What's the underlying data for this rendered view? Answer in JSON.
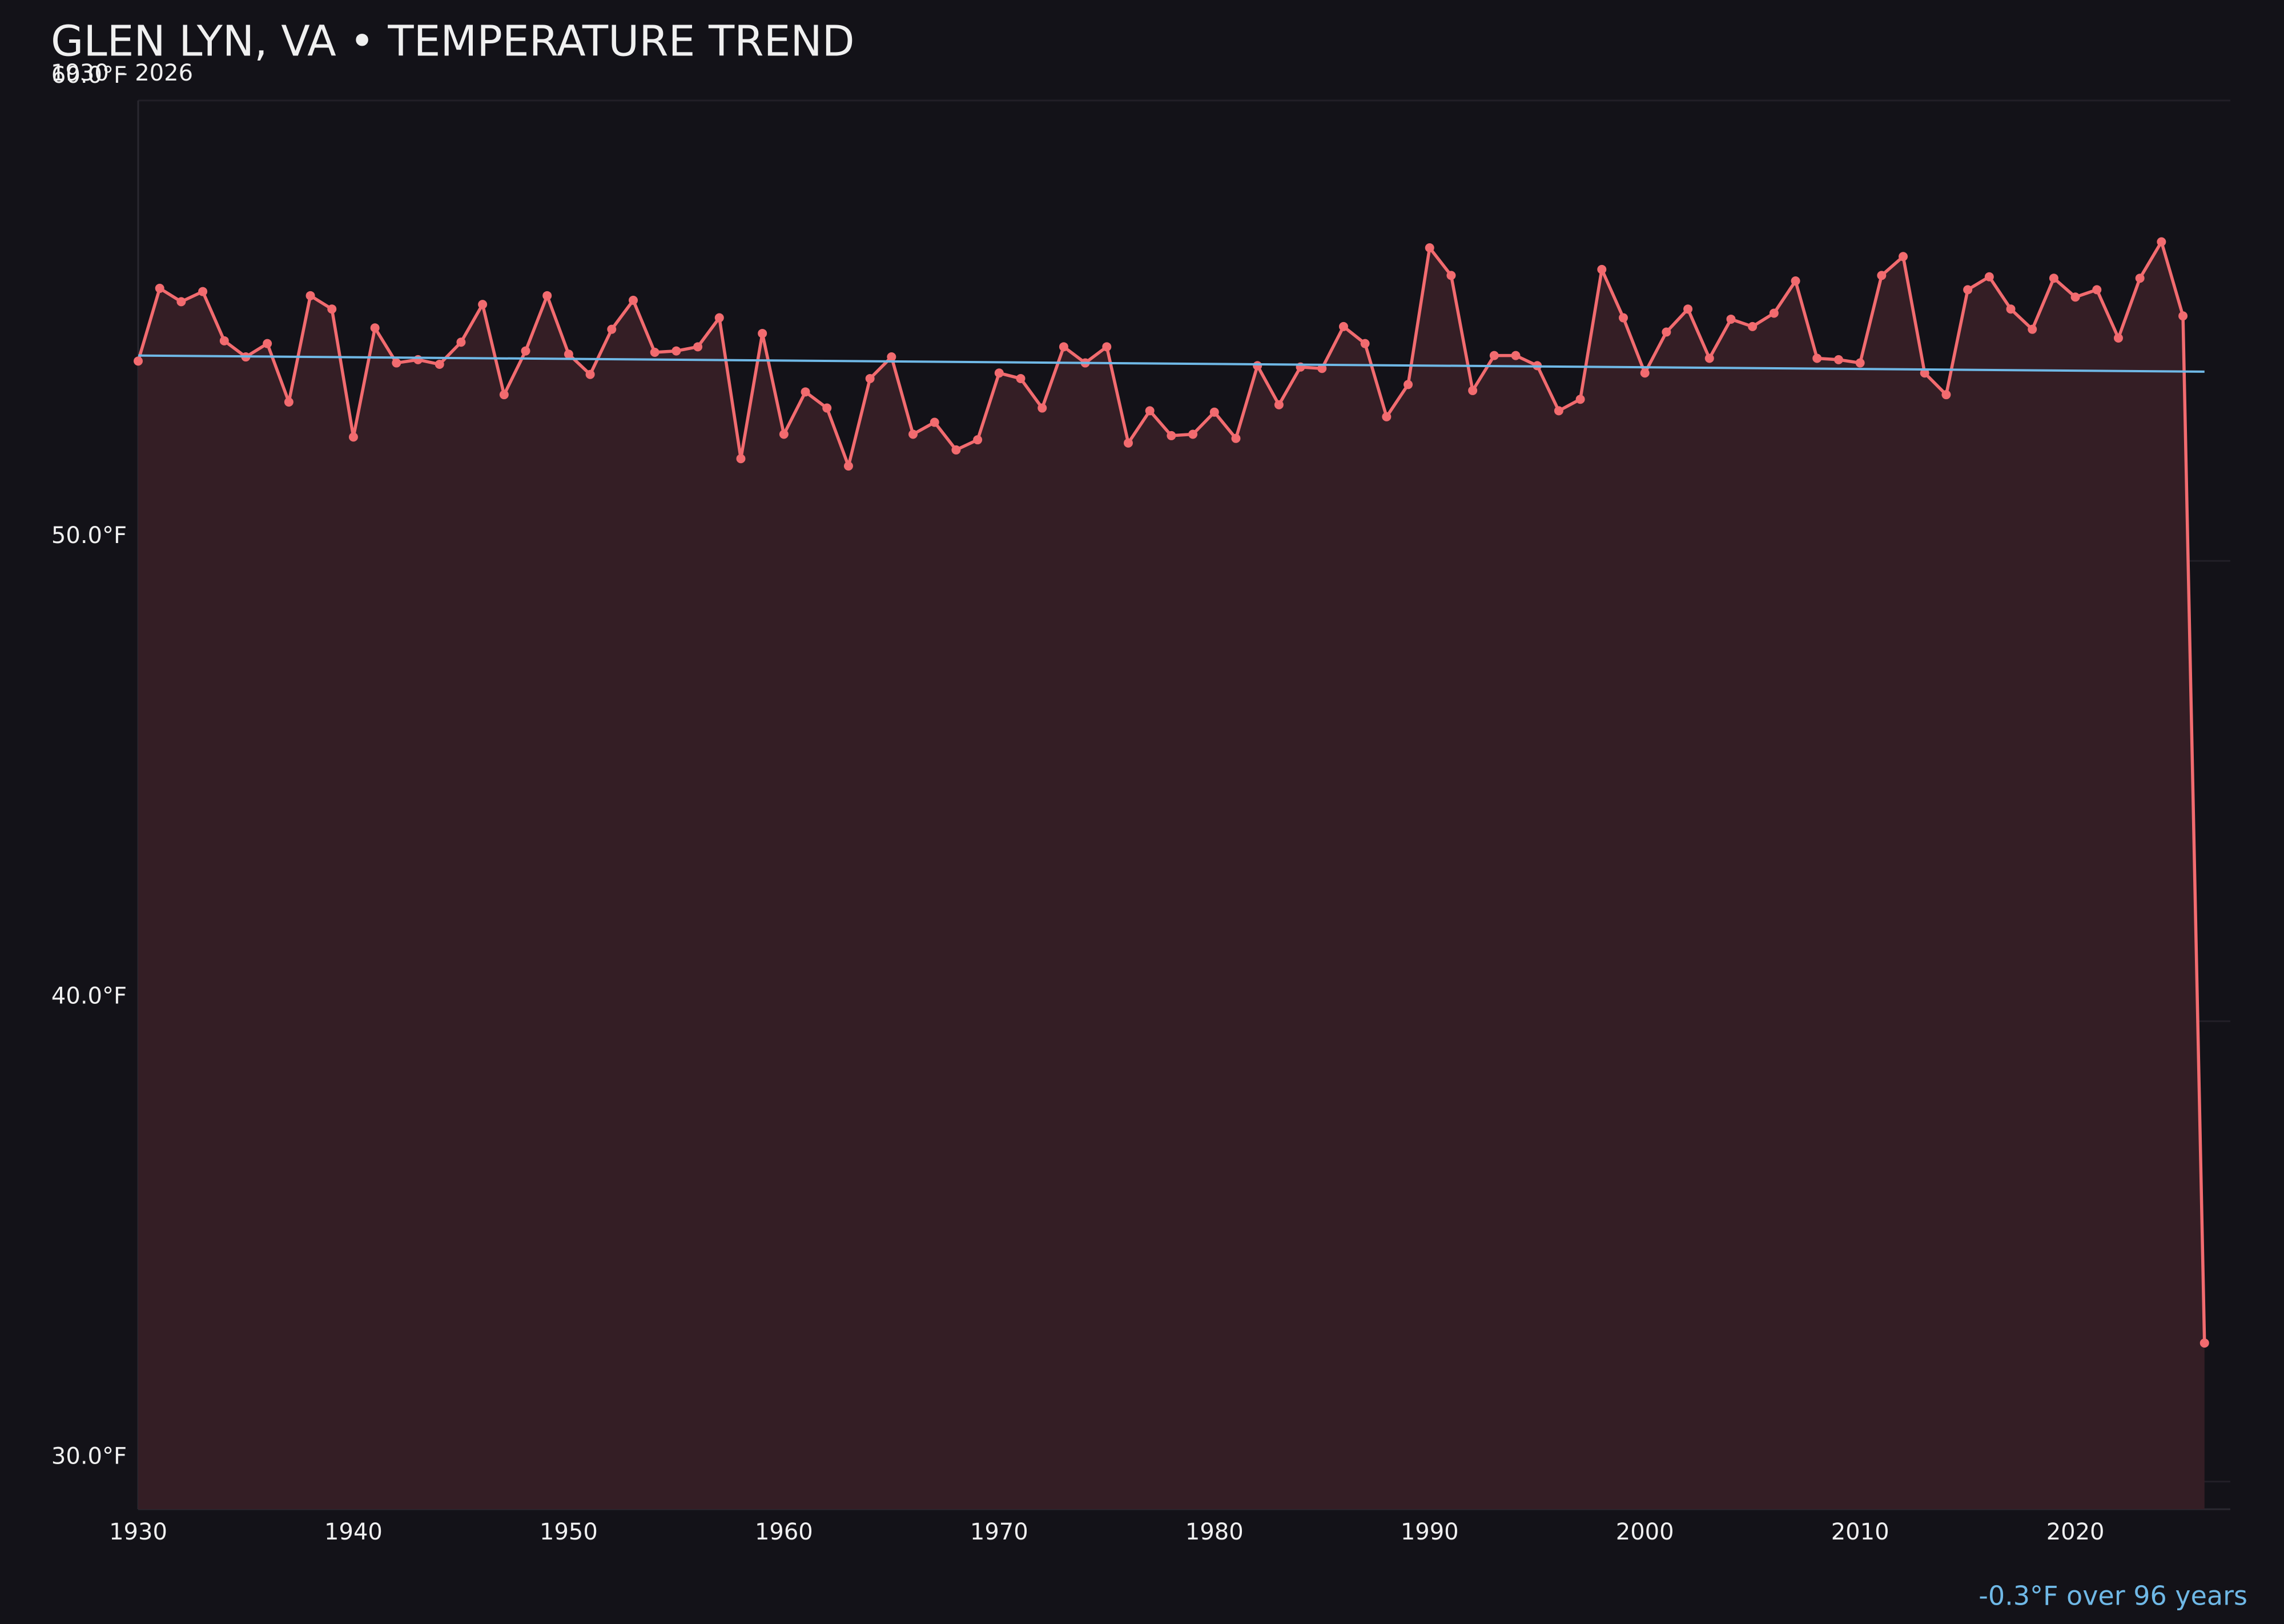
{
  "chart_data": {
    "type": "line",
    "title": "GLEN LYN, VA • TEMPERATURE TREND",
    "subtitle": "1930 – 2026",
    "x": [
      1930,
      1931,
      1932,
      1933,
      1934,
      1935,
      1936,
      1937,
      1938,
      1939,
      1940,
      1941,
      1942,
      1943,
      1944,
      1945,
      1946,
      1947,
      1948,
      1949,
      1950,
      1951,
      1952,
      1953,
      1954,
      1955,
      1956,
      1957,
      1958,
      1959,
      1960,
      1961,
      1962,
      1963,
      1964,
      1965,
      1966,
      1967,
      1968,
      1969,
      1970,
      1971,
      1972,
      1973,
      1974,
      1975,
      1976,
      1977,
      1978,
      1979,
      1980,
      1981,
      1982,
      1983,
      1984,
      1985,
      1986,
      1987,
      1988,
      1989,
      1990,
      1991,
      1992,
      1993,
      1994,
      1995,
      1996,
      1997,
      1998,
      1999,
      2000,
      2001,
      2002,
      2003,
      2004,
      2005,
      2006,
      2007,
      2008,
      2009,
      2010,
      2011,
      2012,
      2013,
      2014,
      2015,
      2016,
      2017,
      2018,
      2019,
      2020,
      2021,
      2022,
      2023,
      2024,
      2025,
      2026
    ],
    "series": [
      {
        "color": "#f26b6f",
        "fill": "#341e25",
        "values": [
          54.34,
          55.92,
          55.63,
          55.85,
          54.78,
          54.43,
          54.72,
          53.45,
          55.76,
          55.47,
          52.69,
          55.06,
          54.3,
          54.37,
          54.27,
          54.75,
          55.57,
          53.61,
          54.56,
          55.76,
          54.49,
          54.05,
          55.03,
          55.66,
          54.53,
          54.56,
          54.65,
          55.28,
          52.22,
          54.94,
          52.75,
          53.67,
          53.32,
          52.06,
          53.96,
          54.43,
          52.75,
          53.01,
          52.41,
          52.63,
          54.08,
          53.96,
          53.32,
          54.65,
          54.3,
          54.65,
          52.56,
          53.26,
          52.72,
          52.75,
          53.23,
          52.66,
          54.24,
          53.39,
          54.21,
          54.18,
          55.09,
          54.72,
          53.13,
          53.83,
          56.8,
          56.2,
          53.7,
          54.46,
          54.46,
          54.24,
          53.26,
          53.51,
          56.33,
          55.28,
          54.08,
          54.97,
          55.47,
          54.4,
          55.25,
          55.09,
          55.38,
          56.08,
          54.4,
          54.37,
          54.3,
          56.2,
          56.61,
          54.08,
          53.61,
          55.89,
          56.17,
          55.47,
          55.03,
          56.14,
          55.73,
          55.89,
          54.84,
          56.14,
          56.93,
          55.32,
          33.01
        ]
      }
    ],
    "trend": {
      "color": "#6fb8e6",
      "x": [
        1930,
        2026
      ],
      "values": [
        54.46,
        54.11
      ]
    },
    "annotation": "-0.3°F over 96 years",
    "xlim": [
      1930,
      2027.2
    ],
    "xticks": [
      1930,
      1940,
      1950,
      1960,
      1970,
      1980,
      1990,
      2000,
      2010,
      2020
    ],
    "ylim": [
      29.4,
      60
    ],
    "yticks": [
      {
        "value": 30,
        "label": "30.0°F"
      },
      {
        "value": 40,
        "label": "40.0°F"
      },
      {
        "value": 50,
        "label": "50.0°F"
      },
      {
        "value": 60,
        "label": "60.0°F"
      }
    ],
    "grid": true
  }
}
